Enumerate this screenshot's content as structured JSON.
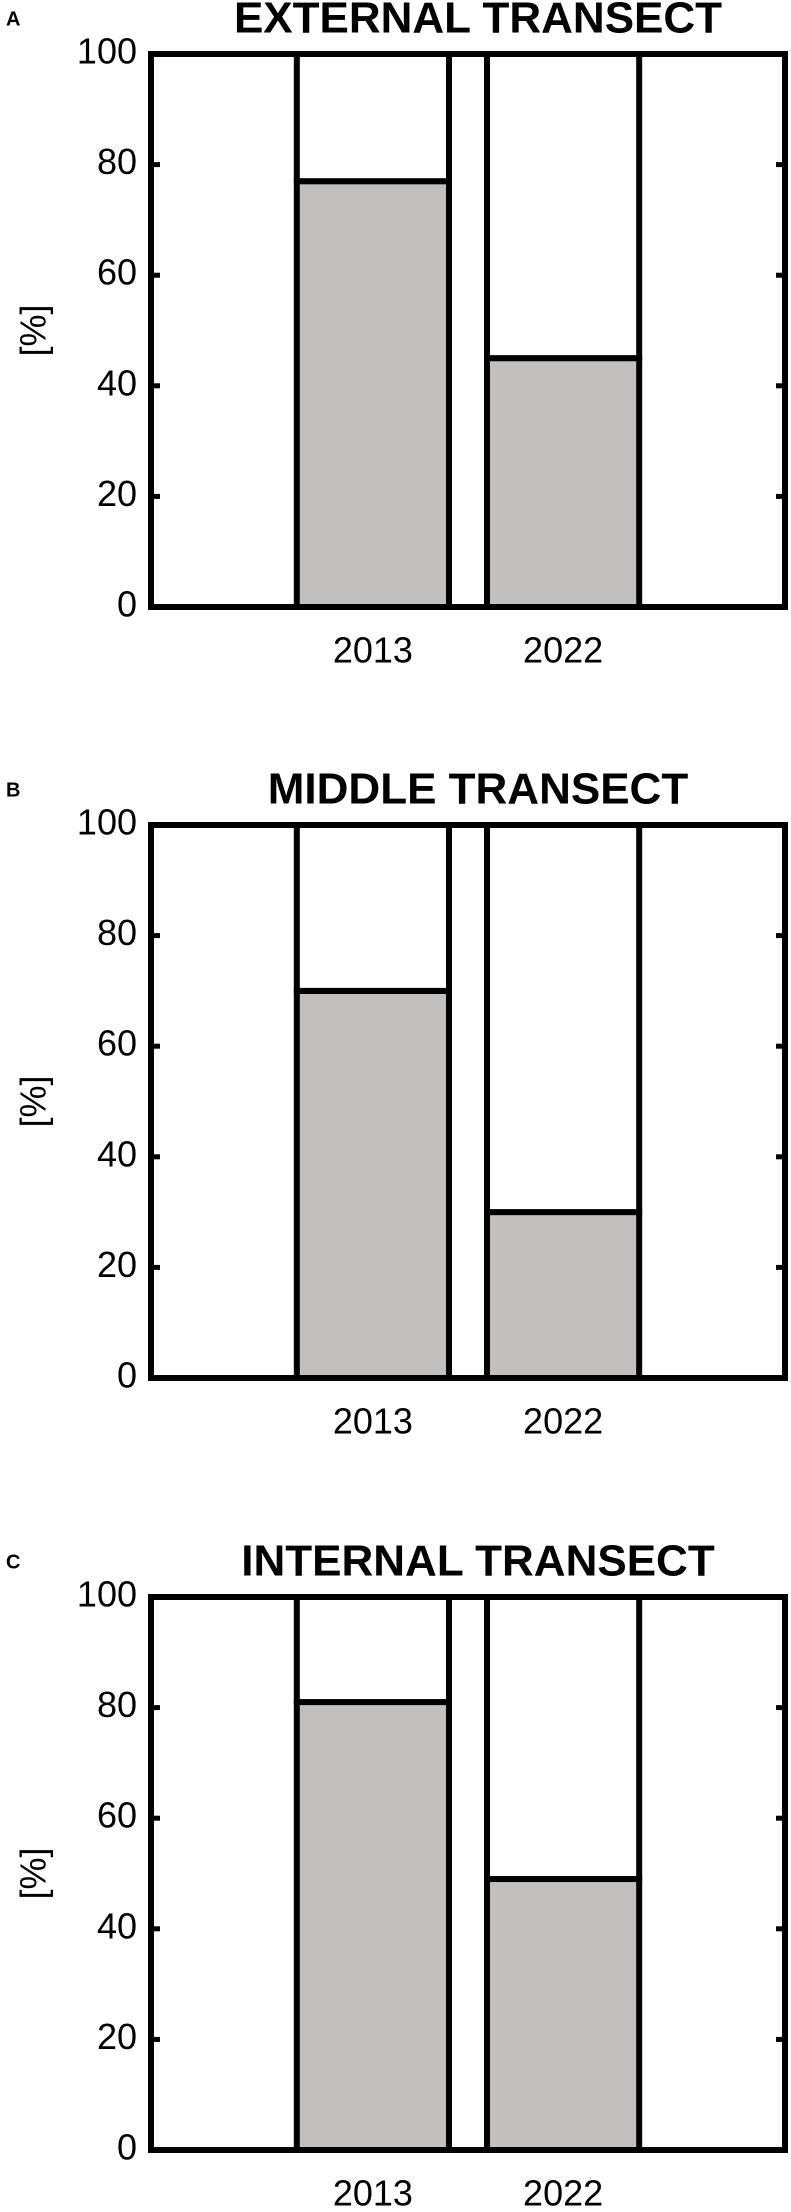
{
  "chart_data": [
    {
      "type": "bar",
      "stacked": true,
      "panel_label": "A",
      "title": "EXTERNAL TRANSECT",
      "ylabel": "[%]",
      "categories": [
        "2013",
        "2022"
      ],
      "series": [
        {
          "color": "#c2bfbf",
          "values": [
            77,
            45
          ]
        },
        {
          "color": "#ffffff",
          "values": [
            23,
            55
          ]
        }
      ],
      "ylim": [
        0,
        100
      ],
      "yticks": [
        0,
        20,
        40,
        60,
        80,
        100
      ]
    },
    {
      "type": "bar",
      "stacked": true,
      "panel_label": "B",
      "title": "MIDDLE TRANSECT",
      "ylabel": "[%]",
      "categories": [
        "2013",
        "2022"
      ],
      "series": [
        {
          "color": "#c2bfbf",
          "values": [
            70,
            30
          ]
        },
        {
          "color": "#ffffff",
          "values": [
            30,
            70
          ]
        }
      ],
      "ylim": [
        0,
        100
      ],
      "yticks": [
        0,
        20,
        40,
        60,
        80,
        100
      ]
    },
    {
      "type": "bar",
      "stacked": true,
      "panel_label": "C",
      "title": "INTERNAL TRANSECT",
      "ylabel": "[%]",
      "categories": [
        "2013",
        "2022"
      ],
      "series": [
        {
          "color": "#c2bfbf",
          "values": [
            81,
            49
          ]
        },
        {
          "color": "#ffffff",
          "values": [
            19,
            51
          ]
        }
      ],
      "ylim": [
        0,
        100
      ],
      "yticks": [
        0,
        20,
        40,
        60,
        80,
        100
      ]
    }
  ]
}
